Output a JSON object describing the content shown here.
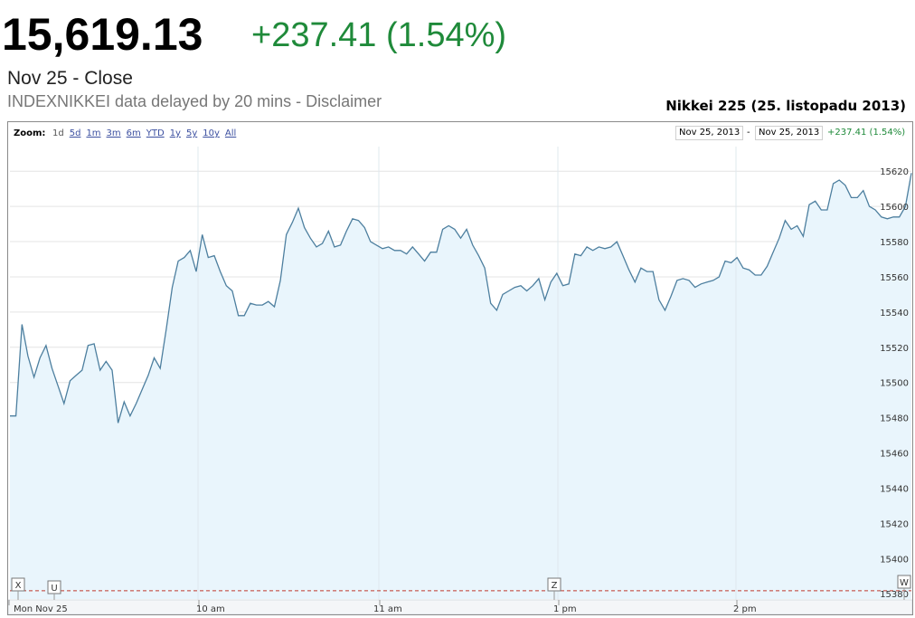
{
  "header": {
    "price": "15,619.13",
    "change": "+237.41 (1.54%)",
    "close_label": "Nov 25 - Close",
    "delay_text": "INDEXNIKKEI data delayed by 20 mins - ",
    "disclaimer": "Disclaimer",
    "chart_title": "Nikkei 225 (25. listopadu 2013)"
  },
  "toolbar": {
    "zoom_label": "Zoom:",
    "zoom_options": [
      "1d",
      "5d",
      "1m",
      "3m",
      "6m",
      "YTD",
      "1y",
      "5y",
      "10y",
      "All"
    ],
    "active_zoom": "1d",
    "range_start": "Nov 25, 2013",
    "range_sep": "-",
    "range_end": "Nov 25, 2013",
    "range_change": "+237.41 (1.54%)"
  },
  "markers": [
    "X",
    "U",
    "Z",
    "W"
  ],
  "colors": {
    "line": "#4d7f9f",
    "fill": "#e9f5fc",
    "up": "#1f8a3a",
    "grid": "#e4e4e4",
    "prev_close": "#c0392b"
  },
  "chart_data": {
    "type": "area",
    "title": "Nikkei 225 (25. listopadu 2013)",
    "x_tick_labels": [
      "Mon Nov 25",
      "10 am",
      "11 am",
      "1 pm",
      "2 pm"
    ],
    "y_ticks": [
      15380,
      15400,
      15420,
      15440,
      15460,
      15480,
      15500,
      15520,
      15540,
      15560,
      15580,
      15600,
      15620
    ],
    "ylim": [
      15377,
      15634
    ],
    "previous_close": 15381.72,
    "grid": true,
    "series": [
      {
        "values": [
          15481,
          15481,
          15533,
          15515,
          15503,
          15514,
          15521,
          15508,
          15498,
          15488,
          15501,
          15504,
          15507,
          15521,
          15522,
          15507,
          15512,
          15507,
          15477,
          15489,
          15481,
          15488,
          15496,
          15504,
          15514,
          15508,
          15530,
          15554,
          15569,
          15571,
          15575,
          15563,
          15584,
          15571,
          15572,
          15563,
          15555,
          15552,
          15538,
          15538,
          15545,
          15544,
          15544,
          15546,
          15543,
          15558,
          15584,
          15591,
          15599,
          15588,
          15582,
          15577,
          15579,
          15586,
          15577,
          15578,
          15586,
          15593,
          15592,
          15588,
          15580,
          15578,
          15576,
          15577,
          15575,
          15575,
          15573,
          15577,
          15573,
          15569,
          15574,
          15574,
          15587,
          15589,
          15587,
          15582,
          15587,
          15578,
          15572,
          15565,
          15545,
          15541,
          15550,
          15552,
          15554,
          15555,
          15552,
          15555,
          15559,
          15547,
          15557,
          15562,
          15555,
          15556,
          15573,
          15572,
          15577,
          15575,
          15577,
          15576,
          15577,
          15580,
          15572,
          15564,
          15557,
          15565,
          15563,
          15563,
          15547,
          15541,
          15549,
          15558,
          15559,
          15558,
          15554,
          15556,
          15557,
          15558,
          15560,
          15569,
          15568,
          15571,
          15565,
          15564,
          15561,
          15561,
          15566,
          15574,
          15582,
          15592,
          15587,
          15589,
          15583,
          15601,
          15603,
          15598,
          15598,
          15613,
          15615,
          15612,
          15605,
          15605,
          15609,
          15600,
          15598,
          15594,
          15593,
          15594,
          15594,
          15600,
          15619
        ]
      }
    ]
  }
}
